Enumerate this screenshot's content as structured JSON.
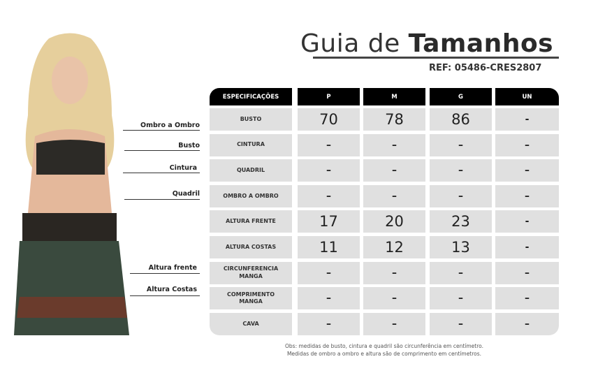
{
  "title": {
    "regular": "Guia de ",
    "bold": "Tamanhos"
  },
  "ref": "REF: 05486-CRES2807",
  "measure_labels": [
    "Ombro a Ombro",
    "Busto",
    "Cintura",
    "Quadril",
    "Altura frente",
    "Altura Costas"
  ],
  "table": {
    "headers": [
      "ESPECIFICAÇÕES",
      "P",
      "M",
      "G",
      "UN"
    ],
    "rows": [
      {
        "spec": "BUSTO",
        "values": [
          "70",
          "78",
          "86",
          "-"
        ]
      },
      {
        "spec": "CINTURA",
        "values": [
          "–",
          "–",
          "–",
          "–"
        ]
      },
      {
        "spec": "QUADRIL",
        "values": [
          "–",
          "–",
          "–",
          "–"
        ]
      },
      {
        "spec": "OMBRO A OMBRO",
        "values": [
          "–",
          "–",
          "–",
          "–"
        ]
      },
      {
        "spec": "ALTURA FRENTE",
        "values": [
          "17",
          "20",
          "23",
          "-"
        ]
      },
      {
        "spec": "ALTURA COSTAS",
        "values": [
          "11",
          "12",
          "13",
          "-"
        ]
      },
      {
        "spec": "CIRCUNFERENCIA MANGA",
        "values": [
          "–",
          "–",
          "–",
          "–"
        ]
      },
      {
        "spec": "COMPRIMENTO MANGA",
        "values": [
          "–",
          "–",
          "–",
          "–"
        ]
      },
      {
        "spec": "CAVA",
        "values": [
          "–",
          "–",
          "–",
          "–"
        ]
      }
    ]
  },
  "note": [
    "Obs: medidas de busto, cintura e quadril são circunferência em centímetro.",
    "Medidas de ombro a ombro e altura são de comprimento em centímetros."
  ]
}
